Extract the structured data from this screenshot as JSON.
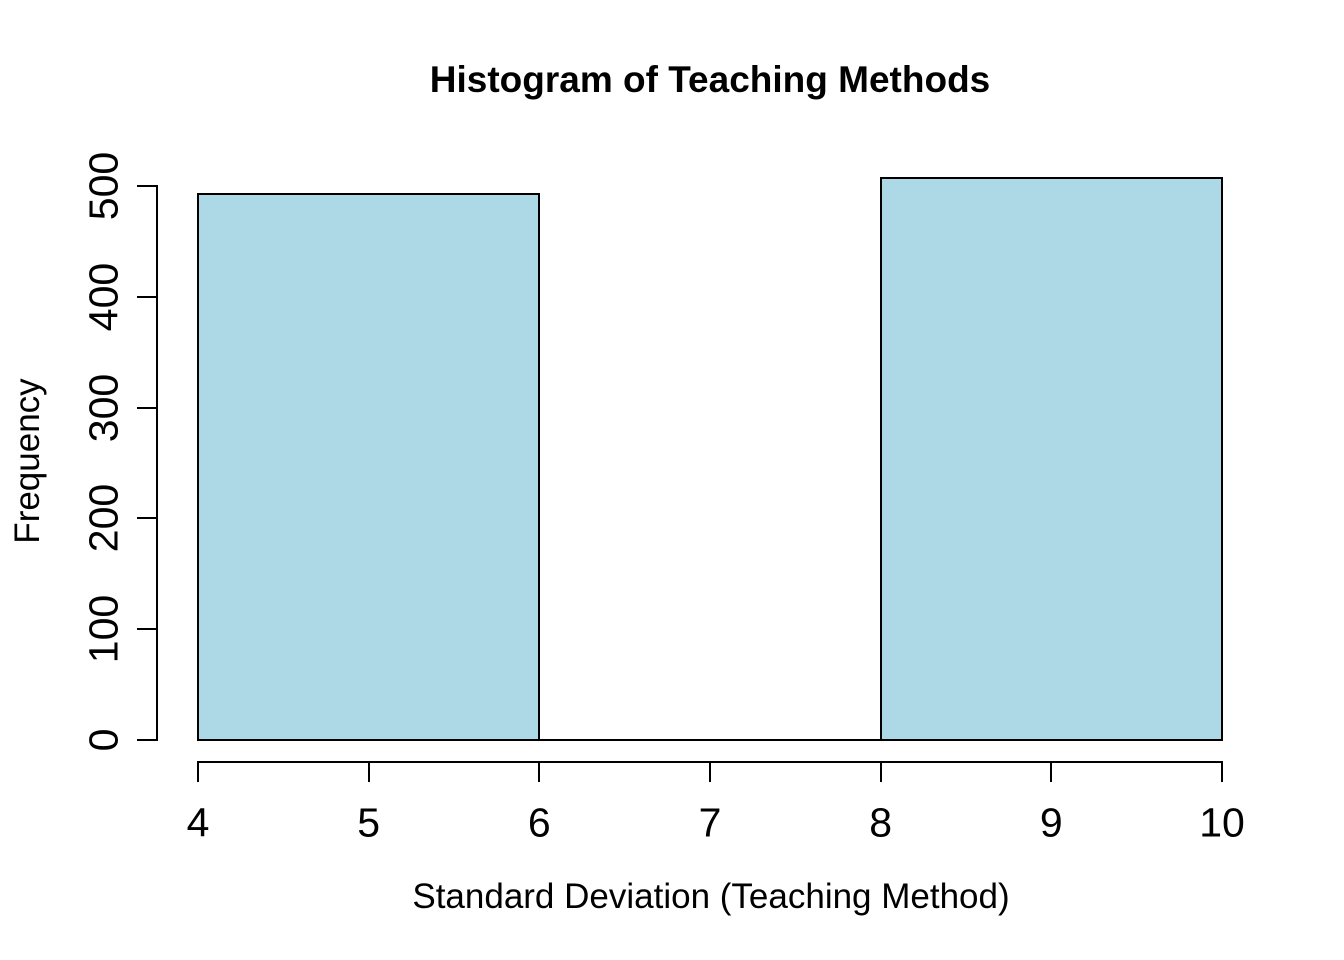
{
  "figure": {
    "background": "#ffffff"
  },
  "chart_data": {
    "type": "histogram",
    "title": "Histogram of Teaching Methods",
    "xlabel": "Standard Deviation (Teaching Method)",
    "ylabel": "Frequency",
    "breaks": [
      4,
      6,
      8,
      10
    ],
    "counts": [
      493,
      0,
      507
    ],
    "x_ticks": [
      "4",
      "5",
      "6",
      "7",
      "8",
      "9",
      "10"
    ],
    "y_ticks": [
      "0",
      "100",
      "200",
      "300",
      "400",
      "500"
    ],
    "xlim": [
      4,
      10
    ],
    "ylim": [
      0,
      500
    ],
    "bar_fill": "#ADD8E6",
    "bar_border": "#000000",
    "axis_color": "#000000",
    "text_color": "#000000",
    "grid": false,
    "legend": null
  }
}
